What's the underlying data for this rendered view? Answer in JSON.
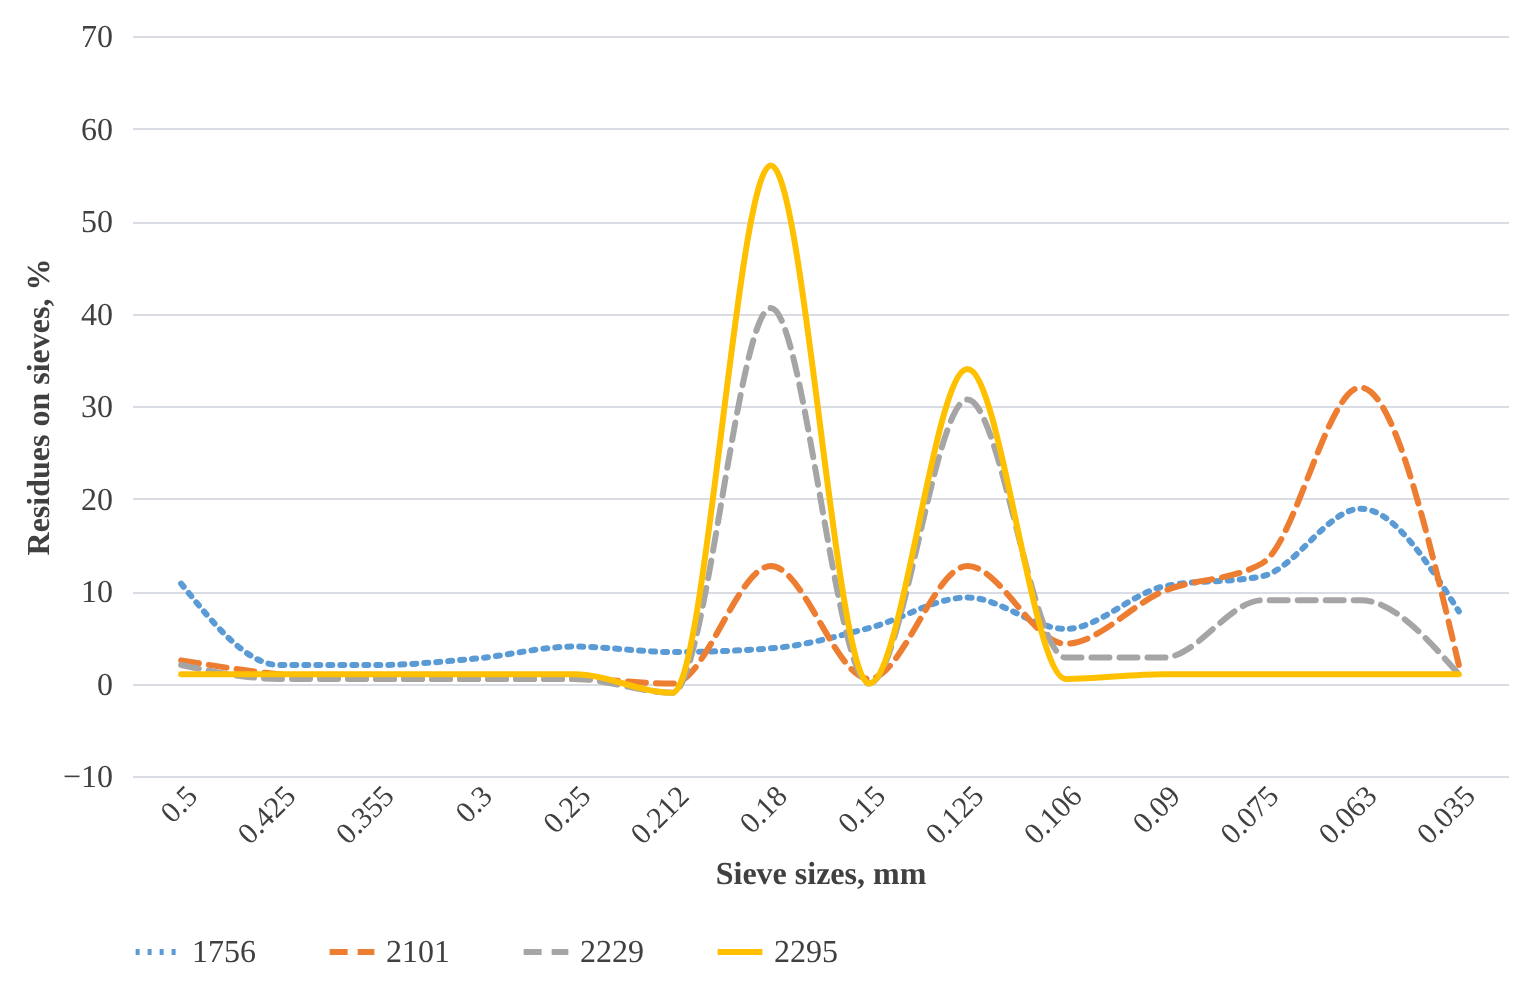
{
  "chart_data": {
    "type": "line",
    "xlabel": "Sieve sizes, mm",
    "ylabel": "Residues on sieves, %",
    "categories": [
      "0.5",
      "0.425",
      "0.355",
      "0.3",
      "0.25",
      "0.212",
      "0.18",
      "0.15",
      "0.125",
      "0.106",
      "0.09",
      "0.075",
      "0.063",
      "0.035"
    ],
    "series": [
      {
        "name": "1756",
        "color": "#5b9bd5",
        "line_style": "dotted",
        "values": [
          10.8,
          2,
          2,
          2.7,
          4,
          3.4,
          3.8,
          6,
          9.3,
          5.9,
          10.5,
          11.6,
          18.9,
          7.8
        ]
      },
      {
        "name": "2101",
        "color": "#ed7d31",
        "line_style": "dashed",
        "values": [
          2.5,
          1,
          0.5,
          0.5,
          0.5,
          0,
          12.7,
          0.5,
          12.7,
          4.3,
          10,
          13,
          32,
          2
        ]
      },
      {
        "name": "2229",
        "color": "#a5a5a5",
        "line_style": "dashed",
        "values": [
          2,
          0.5,
          0.5,
          0.5,
          0.5,
          -1,
          40.6,
          0,
          30.7,
          2.8,
          2.8,
          9,
          9,
          1
        ]
      },
      {
        "name": "2295",
        "color": "#ffc000",
        "line_style": "solid",
        "values": [
          1,
          1,
          1,
          1,
          1,
          -1,
          56,
          0,
          34,
          0.5,
          1,
          1,
          1,
          1
        ]
      }
    ],
    "ylim": [
      -10,
      70
    ],
    "yticks": [
      -10,
      0,
      10,
      20,
      30,
      40,
      50,
      60,
      70
    ],
    "grid": "y",
    "legend": "bottom"
  }
}
